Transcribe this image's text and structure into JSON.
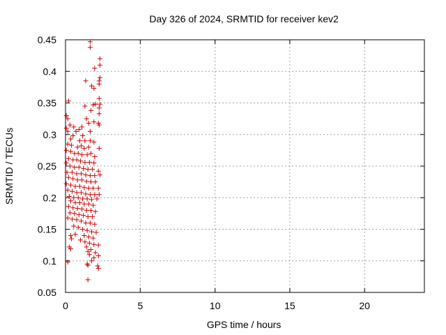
{
  "chart_data": {
    "type": "scatter",
    "title": "Day 326 of 2024, SRMTID for receiver kev2",
    "xlabel": "GPS time / hours",
    "ylabel": "SRMTID / TECUs",
    "xlim": [
      0,
      24
    ],
    "ylim": [
      0.05,
      0.45
    ],
    "x_ticks": [
      0,
      5,
      10,
      15,
      20
    ],
    "x_tick_labels": [
      "0",
      "5",
      "10",
      "15",
      "20"
    ],
    "y_ticks": [
      0.05,
      0.1,
      0.15,
      0.2,
      0.25,
      0.3,
      0.35,
      0.4,
      0.45
    ],
    "y_tick_labels": [
      "0.05",
      "0.1",
      "0.15",
      "0.2",
      "0.25",
      "0.3",
      "0.35",
      "0.4",
      "0.45"
    ],
    "grid": true,
    "marker": "+",
    "marker_color": "#cc0000",
    "series": [
      {
        "name": "kev2",
        "points": [
          [
            1.65,
            0.447
          ],
          [
            1.65,
            0.438
          ],
          [
            1.95,
            0.405
          ],
          [
            2.3,
            0.42
          ],
          [
            2.3,
            0.41
          ],
          [
            2.3,
            0.39
          ],
          [
            2.25,
            0.385
          ],
          [
            2.25,
            0.38
          ],
          [
            1.35,
            0.385
          ],
          [
            1.75,
            0.377
          ],
          [
            1.9,
            0.373
          ],
          [
            0.2,
            0.353
          ],
          [
            2.25,
            0.357
          ],
          [
            2.3,
            0.348
          ],
          [
            2.25,
            0.342
          ],
          [
            1.85,
            0.347
          ],
          [
            2.0,
            0.348
          ],
          [
            1.3,
            0.345
          ],
          [
            1.7,
            0.338
          ],
          [
            2.25,
            0.333
          ],
          [
            0.05,
            0.33
          ],
          [
            0.15,
            0.325
          ],
          [
            1.4,
            0.325
          ],
          [
            1.55,
            0.318
          ],
          [
            1.9,
            0.32
          ],
          [
            2.2,
            0.318
          ],
          [
            2.25,
            0.315
          ],
          [
            0.3,
            0.315
          ],
          [
            0.55,
            0.312
          ],
          [
            1.1,
            0.312
          ],
          [
            0.05,
            0.31
          ],
          [
            0.15,
            0.305
          ],
          [
            0.7,
            0.305
          ],
          [
            0.9,
            0.308
          ],
          [
            1.65,
            0.305
          ],
          [
            1.15,
            0.298
          ],
          [
            0.5,
            0.298
          ],
          [
            0.35,
            0.293
          ],
          [
            0.95,
            0.29
          ],
          [
            1.3,
            0.29
          ],
          [
            1.65,
            0.29
          ],
          [
            1.9,
            0.288
          ],
          [
            0.15,
            0.285
          ],
          [
            0.4,
            0.283
          ],
          [
            0.8,
            0.28
          ],
          [
            1.05,
            0.282
          ],
          [
            1.25,
            0.278
          ],
          [
            1.55,
            0.28
          ],
          [
            2.25,
            0.278
          ],
          [
            0.05,
            0.275
          ],
          [
            0.35,
            0.273
          ],
          [
            0.6,
            0.27
          ],
          [
            0.85,
            0.27
          ],
          [
            1.1,
            0.268
          ],
          [
            1.45,
            0.268
          ],
          [
            1.7,
            0.27
          ],
          [
            1.95,
            0.265
          ],
          [
            0.2,
            0.262
          ],
          [
            0.5,
            0.26
          ],
          [
            0.75,
            0.26
          ],
          [
            1.0,
            0.258
          ],
          [
            1.3,
            0.256
          ],
          [
            1.6,
            0.256
          ],
          [
            1.9,
            0.255
          ],
          [
            0.05,
            0.255
          ],
          [
            0.3,
            0.25
          ],
          [
            0.6,
            0.248
          ],
          [
            0.9,
            0.248
          ],
          [
            1.2,
            0.246
          ],
          [
            1.5,
            0.245
          ],
          [
            1.8,
            0.245
          ],
          [
            2.2,
            0.242
          ],
          [
            0.1,
            0.24
          ],
          [
            0.45,
            0.24
          ],
          [
            0.75,
            0.238
          ],
          [
            1.05,
            0.238
          ],
          [
            1.35,
            0.236
          ],
          [
            1.65,
            0.235
          ],
          [
            1.95,
            0.235
          ],
          [
            2.3,
            0.236
          ],
          [
            0.2,
            0.232
          ],
          [
            0.5,
            0.23
          ],
          [
            0.8,
            0.228
          ],
          [
            1.1,
            0.228
          ],
          [
            1.4,
            0.226
          ],
          [
            1.7,
            0.225
          ],
          [
            2.0,
            0.225
          ],
          [
            0.05,
            0.222
          ],
          [
            0.35,
            0.22
          ],
          [
            0.65,
            0.218
          ],
          [
            0.95,
            0.218
          ],
          [
            1.25,
            0.216
          ],
          [
            1.55,
            0.215
          ],
          [
            1.85,
            0.215
          ],
          [
            2.2,
            0.215
          ],
          [
            0.15,
            0.212
          ],
          [
            0.45,
            0.21
          ],
          [
            0.75,
            0.208
          ],
          [
            1.05,
            0.208
          ],
          [
            1.35,
            0.206
          ],
          [
            1.65,
            0.205
          ],
          [
            1.95,
            0.205
          ],
          [
            2.25,
            0.205
          ],
          [
            0.25,
            0.202
          ],
          [
            0.55,
            0.2
          ],
          [
            0.85,
            0.2
          ],
          [
            1.15,
            0.198
          ],
          [
            1.45,
            0.198
          ],
          [
            1.75,
            0.197
          ],
          [
            2.1,
            0.198
          ],
          [
            0.35,
            0.195
          ],
          [
            0.65,
            0.192
          ],
          [
            0.95,
            0.192
          ],
          [
            1.25,
            0.19
          ],
          [
            1.55,
            0.19
          ],
          [
            1.85,
            0.188
          ],
          [
            0.2,
            0.186
          ],
          [
            0.5,
            0.184
          ],
          [
            0.8,
            0.183
          ],
          [
            1.1,
            0.182
          ],
          [
            1.4,
            0.18
          ],
          [
            1.7,
            0.18
          ],
          [
            2.0,
            0.178
          ],
          [
            0.3,
            0.176
          ],
          [
            0.6,
            0.175
          ],
          [
            0.9,
            0.173
          ],
          [
            1.2,
            0.172
          ],
          [
            1.5,
            0.17
          ],
          [
            1.8,
            0.17
          ],
          [
            0.15,
            0.168
          ],
          [
            0.45,
            0.166
          ],
          [
            0.75,
            0.165
          ],
          [
            1.05,
            0.163
          ],
          [
            1.35,
            0.16
          ],
          [
            1.65,
            0.16
          ],
          [
            1.95,
            0.158
          ],
          [
            0.55,
            0.155
          ],
          [
            0.85,
            0.153
          ],
          [
            1.15,
            0.15
          ],
          [
            1.45,
            0.148
          ],
          [
            1.75,
            0.146
          ],
          [
            2.05,
            0.145
          ],
          [
            0.65,
            0.142
          ],
          [
            0.35,
            0.14
          ],
          [
            1.25,
            0.14
          ],
          [
            1.55,
            0.138
          ],
          [
            1.85,
            0.136
          ],
          [
            0.4,
            0.135
          ],
          [
            1.0,
            0.133
          ],
          [
            1.3,
            0.13
          ],
          [
            1.6,
            0.128
          ],
          [
            1.9,
            0.126
          ],
          [
            2.2,
            0.125
          ],
          [
            1.4,
            0.122
          ],
          [
            0.25,
            0.122
          ],
          [
            0.35,
            0.119
          ],
          [
            1.7,
            0.118
          ],
          [
            1.5,
            0.115
          ],
          [
            2.0,
            0.113
          ],
          [
            1.6,
            0.11
          ],
          [
            2.2,
            0.108
          ],
          [
            1.9,
            0.105
          ],
          [
            1.75,
            0.1
          ],
          [
            0.15,
            0.098
          ],
          [
            1.45,
            0.095
          ],
          [
            1.5,
            0.093
          ],
          [
            2.15,
            0.092
          ],
          [
            2.2,
            0.088
          ],
          [
            1.5,
            0.07
          ]
        ]
      }
    ]
  }
}
